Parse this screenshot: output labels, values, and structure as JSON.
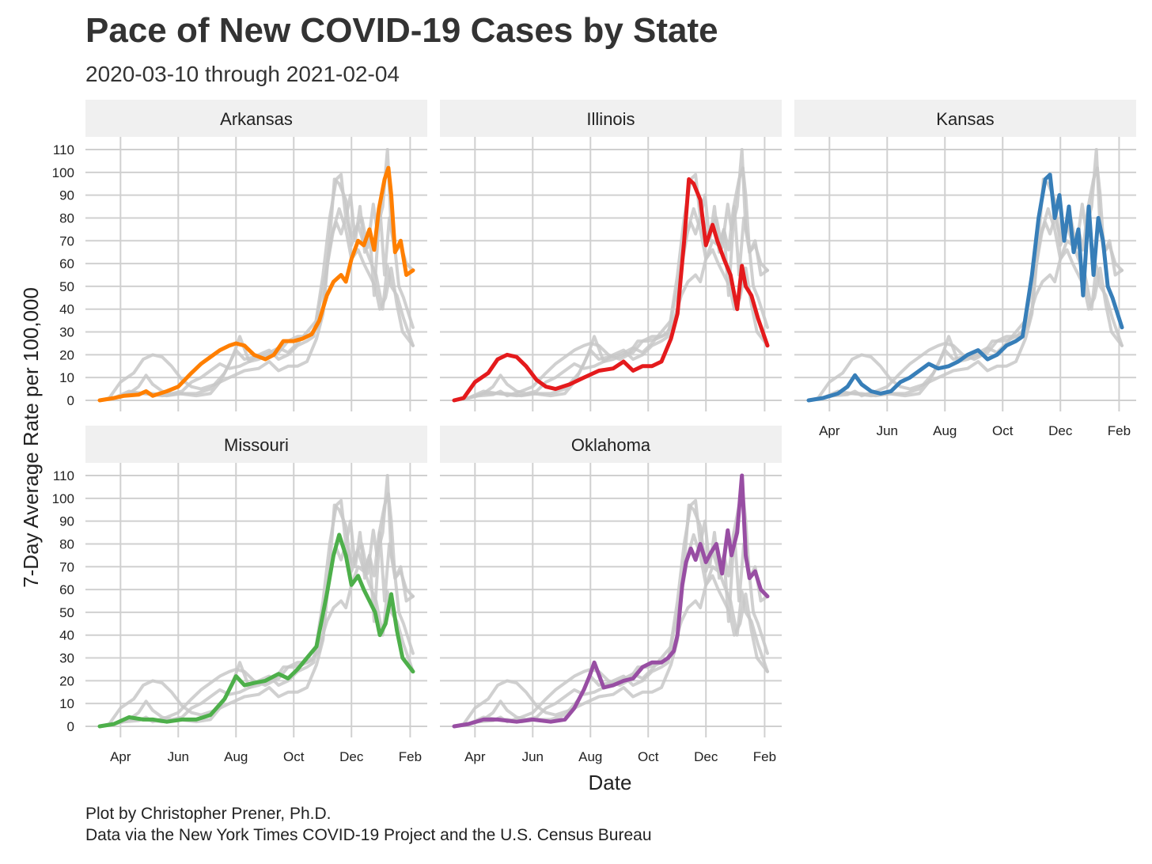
{
  "title": "Pace of New COVID-19 Cases by State",
  "subtitle": "2020-03-10 through 2021-02-04",
  "caption_line1": "Plot by Christopher Prener, Ph.D.",
  "caption_line2": "Data via the New York Times COVID-19 Project and the U.S. Census Bureau",
  "chart_data": {
    "type": "line",
    "facets": [
      "Arkansas",
      "Illinois",
      "Kansas",
      "Missouri",
      "Oklahoma"
    ],
    "xlabel": "Date",
    "ylabel": "7-Day Average Rate per 100,000",
    "xlim": [
      "2020-03-10",
      "2021-02-04"
    ],
    "ylim": [
      0,
      110
    ],
    "x_ticks": [
      "2020-04-01",
      "2020-06-01",
      "2020-08-01",
      "2020-10-01",
      "2020-12-01",
      "2021-02-01"
    ],
    "x_tick_labels": [
      "Apr",
      "Jun",
      "Aug",
      "Oct",
      "Dec",
      "Feb"
    ],
    "y_ticks": [
      0,
      10,
      20,
      30,
      40,
      50,
      60,
      70,
      80,
      90,
      100,
      110
    ],
    "grid": true,
    "background_series_color": "#c8c8c8",
    "series": [
      {
        "name": "Arkansas",
        "color": "#ff7f00",
        "x": [
          "2020-03-10",
          "2020-03-25",
          "2020-04-05",
          "2020-04-20",
          "2020-04-28",
          "2020-05-05",
          "2020-05-20",
          "2020-06-01",
          "2020-06-15",
          "2020-06-25",
          "2020-07-05",
          "2020-07-15",
          "2020-07-25",
          "2020-08-01",
          "2020-08-10",
          "2020-08-20",
          "2020-09-01",
          "2020-09-10",
          "2020-09-20",
          "2020-10-01",
          "2020-10-10",
          "2020-10-20",
          "2020-10-28",
          "2020-11-05",
          "2020-11-12",
          "2020-11-20",
          "2020-11-25",
          "2020-12-01",
          "2020-12-08",
          "2020-12-14",
          "2020-12-20",
          "2020-12-25",
          "2020-12-30",
          "2021-01-05",
          "2021-01-09",
          "2021-01-12",
          "2021-01-16",
          "2021-01-22",
          "2021-01-28",
          "2021-02-04"
        ],
        "values": [
          0,
          1,
          2,
          2.5,
          4,
          2,
          4,
          6,
          12,
          16,
          19,
          22,
          24,
          25,
          24,
          20,
          18,
          20,
          26,
          26,
          27,
          29,
          35,
          46,
          52,
          55,
          52,
          62,
          70,
          68,
          75,
          66,
          84,
          97,
          102,
          90,
          65,
          70,
          55,
          57
        ]
      },
      {
        "name": "Illinois",
        "color": "#e41a1c",
        "x": [
          "2020-03-10",
          "2020-03-20",
          "2020-04-01",
          "2020-04-15",
          "2020-04-25",
          "2020-05-05",
          "2020-05-15",
          "2020-05-25",
          "2020-06-05",
          "2020-06-15",
          "2020-06-25",
          "2020-07-10",
          "2020-07-25",
          "2020-08-10",
          "2020-08-25",
          "2020-09-05",
          "2020-09-15",
          "2020-09-25",
          "2020-10-05",
          "2020-10-15",
          "2020-10-25",
          "2020-11-01",
          "2020-11-08",
          "2020-11-13",
          "2020-11-18",
          "2020-11-25",
          "2020-12-01",
          "2020-12-08",
          "2020-12-13",
          "2020-12-20",
          "2020-12-27",
          "2021-01-03",
          "2021-01-08",
          "2021-01-12",
          "2021-01-18",
          "2021-01-25",
          "2021-02-04"
        ],
        "values": [
          0,
          1,
          8,
          12,
          18,
          20,
          19,
          15,
          9,
          6,
          5,
          7,
          10,
          13,
          14,
          17,
          13,
          15,
          15,
          17,
          27,
          38,
          70,
          97,
          95,
          88,
          68,
          77,
          70,
          62,
          55,
          40,
          59,
          50,
          46,
          36,
          24
        ]
      },
      {
        "name": "Kansas",
        "color": "#377eb8",
        "x": [
          "2020-03-10",
          "2020-03-25",
          "2020-04-10",
          "2020-04-20",
          "2020-04-28",
          "2020-05-05",
          "2020-05-15",
          "2020-05-25",
          "2020-06-05",
          "2020-06-15",
          "2020-06-25",
          "2020-07-05",
          "2020-07-15",
          "2020-07-25",
          "2020-08-05",
          "2020-08-15",
          "2020-08-25",
          "2020-09-05",
          "2020-09-15",
          "2020-09-25",
          "2020-10-05",
          "2020-10-15",
          "2020-10-22",
          "2020-11-01",
          "2020-11-08",
          "2020-11-15",
          "2020-11-20",
          "2020-11-25",
          "2020-11-30",
          "2020-12-05",
          "2020-12-10",
          "2020-12-15",
          "2020-12-20",
          "2020-12-25",
          "2020-12-31",
          "2021-01-05",
          "2021-01-10",
          "2021-01-15",
          "2021-01-20",
          "2021-01-25",
          "2021-02-04"
        ],
        "values": [
          0,
          1,
          3,
          6,
          11,
          7,
          4,
          3,
          4,
          8,
          10,
          13,
          16,
          14,
          15,
          17,
          20,
          22,
          18,
          20,
          24,
          26,
          28,
          55,
          80,
          97,
          99,
          80,
          90,
          70,
          85,
          65,
          75,
          46,
          85,
          55,
          80,
          70,
          50,
          45,
          32
        ]
      },
      {
        "name": "Missouri",
        "color": "#4daf4a",
        "x": [
          "2020-03-10",
          "2020-03-25",
          "2020-04-10",
          "2020-04-25",
          "2020-05-05",
          "2020-05-20",
          "2020-06-05",
          "2020-06-20",
          "2020-07-05",
          "2020-07-20",
          "2020-08-01",
          "2020-08-10",
          "2020-08-20",
          "2020-09-01",
          "2020-09-15",
          "2020-09-25",
          "2020-10-05",
          "2020-10-15",
          "2020-10-25",
          "2020-11-05",
          "2020-11-12",
          "2020-11-18",
          "2020-11-25",
          "2020-12-01",
          "2020-12-08",
          "2020-12-14",
          "2020-12-20",
          "2020-12-26",
          "2020-12-31",
          "2021-01-06",
          "2021-01-12",
          "2021-01-18",
          "2021-01-24",
          "2021-02-04"
        ],
        "values": [
          0,
          1,
          4,
          3,
          3,
          2,
          3,
          3,
          5,
          12,
          22,
          18,
          19,
          20,
          23,
          21,
          25,
          30,
          35,
          58,
          75,
          84,
          75,
          62,
          66,
          60,
          55,
          50,
          40,
          45,
          58,
          42,
          30,
          24
        ]
      },
      {
        "name": "Oklahoma",
        "color": "#984ea3",
        "x": [
          "2020-03-10",
          "2020-03-25",
          "2020-04-10",
          "2020-04-25",
          "2020-05-15",
          "2020-06-01",
          "2020-06-20",
          "2020-07-05",
          "2020-07-15",
          "2020-07-25",
          "2020-07-31",
          "2020-08-05",
          "2020-08-15",
          "2020-08-25",
          "2020-09-05",
          "2020-09-15",
          "2020-09-25",
          "2020-10-05",
          "2020-10-15",
          "2020-10-22",
          "2020-10-28",
          "2020-11-01",
          "2020-11-06",
          "2020-11-10",
          "2020-11-15",
          "2020-11-20",
          "2020-11-25",
          "2020-12-01",
          "2020-12-06",
          "2020-12-12",
          "2020-12-18",
          "2020-12-24",
          "2020-12-28",
          "2021-01-03",
          "2021-01-08",
          "2021-01-12",
          "2021-01-16",
          "2021-01-22",
          "2021-01-28",
          "2021-02-04"
        ],
        "values": [
          0,
          1,
          3,
          3,
          2,
          3,
          2,
          3,
          8,
          16,
          22,
          28,
          17,
          18,
          20,
          21,
          26,
          28,
          28,
          30,
          33,
          40,
          62,
          72,
          78,
          73,
          80,
          72,
          76,
          80,
          67,
          86,
          75,
          85,
          110,
          75,
          65,
          68,
          60,
          57
        ]
      }
    ]
  }
}
